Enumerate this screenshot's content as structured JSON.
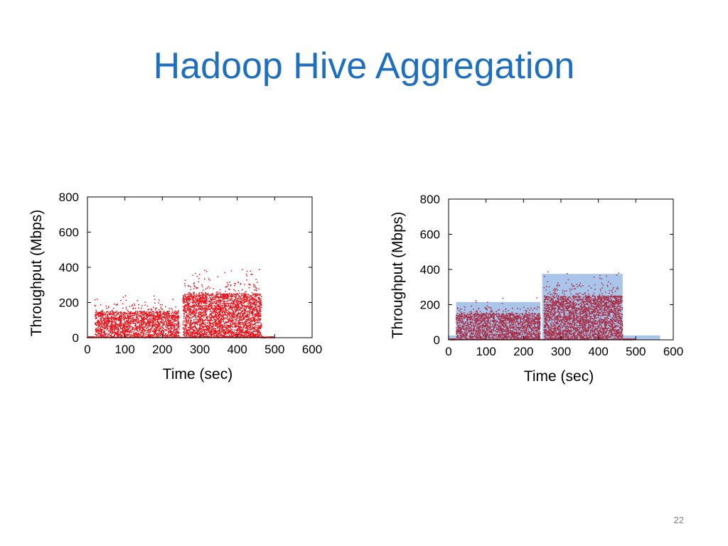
{
  "slide": {
    "title": "Hadoop Hive Aggregation",
    "page_number": "22"
  },
  "colors": {
    "title": "#1f6fbf",
    "points_left": "#e8141c",
    "points_right": "#a82f48",
    "capacity_band": "#a9c6ea"
  },
  "chart_data": [
    {
      "type": "scatter",
      "xlabel": "Time (sec)",
      "ylabel": "Throughput (Mbps)",
      "xlim": [
        0,
        600
      ],
      "ylim": [
        0,
        800
      ],
      "xticks": [
        0,
        100,
        200,
        300,
        400,
        500,
        600
      ],
      "yticks": [
        0,
        200,
        400,
        600,
        800
      ],
      "grid": false,
      "point_color": "#e8141c",
      "series": [
        {
          "description_ranges": "dense scatter of throughput samples over time",
          "segments": [
            {
              "x": [
                0,
                20
              ],
              "y": [
                0,
                5
              ],
              "density": 0.3
            },
            {
              "x": [
                20,
                245
              ],
              "y": [
                0,
                150
              ],
              "peak": 240,
              "density": 1.0
            },
            {
              "x": [
                255,
                465
              ],
              "y": [
                0,
                250
              ],
              "peak": 390,
              "density": 1.6
            },
            {
              "x": [
                465,
                500
              ],
              "y": [
                0,
                5
              ],
              "density": 0.3
            }
          ]
        }
      ]
    },
    {
      "type": "scatter",
      "xlabel": "Time (sec)",
      "ylabel": "Throughput (Mbps)",
      "xlim": [
        0,
        600
      ],
      "ylim": [
        0,
        800
      ],
      "xticks": [
        0,
        100,
        200,
        300,
        400,
        500,
        600
      ],
      "yticks": [
        0,
        200,
        400,
        600,
        800
      ],
      "grid": false,
      "point_color": "#a82f48",
      "bands": [
        {
          "x": [
            -10,
            20
          ],
          "y": [
            0,
            25
          ]
        },
        {
          "x": [
            20,
            245
          ],
          "y": [
            0,
            215
          ]
        },
        {
          "x": [
            250,
            465
          ],
          "y": [
            0,
            375
          ]
        },
        {
          "x": [
            465,
            565
          ],
          "y": [
            0,
            25
          ]
        }
      ]
    }
  ]
}
